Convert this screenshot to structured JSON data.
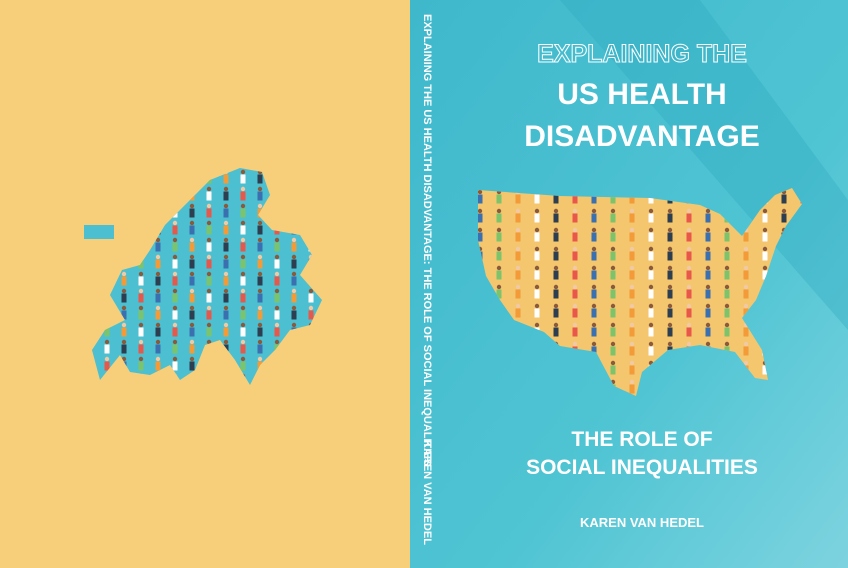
{
  "front": {
    "title_lines": [
      "EXPLAINING THE",
      "US HEALTH",
      "DISADVANTAGE"
    ],
    "subtitle_lines": [
      "THE ROLE OF",
      "SOCIAL INEQUALITIES"
    ],
    "author": "KAREN VAN HEDEL"
  },
  "spine": {
    "title": "EXPLAINING THE US HEALTH DISADVANTAGE: THE ROLE OF SOCIAL INEQUALITIES",
    "author": "KAREN VAN HEDEL"
  }
}
